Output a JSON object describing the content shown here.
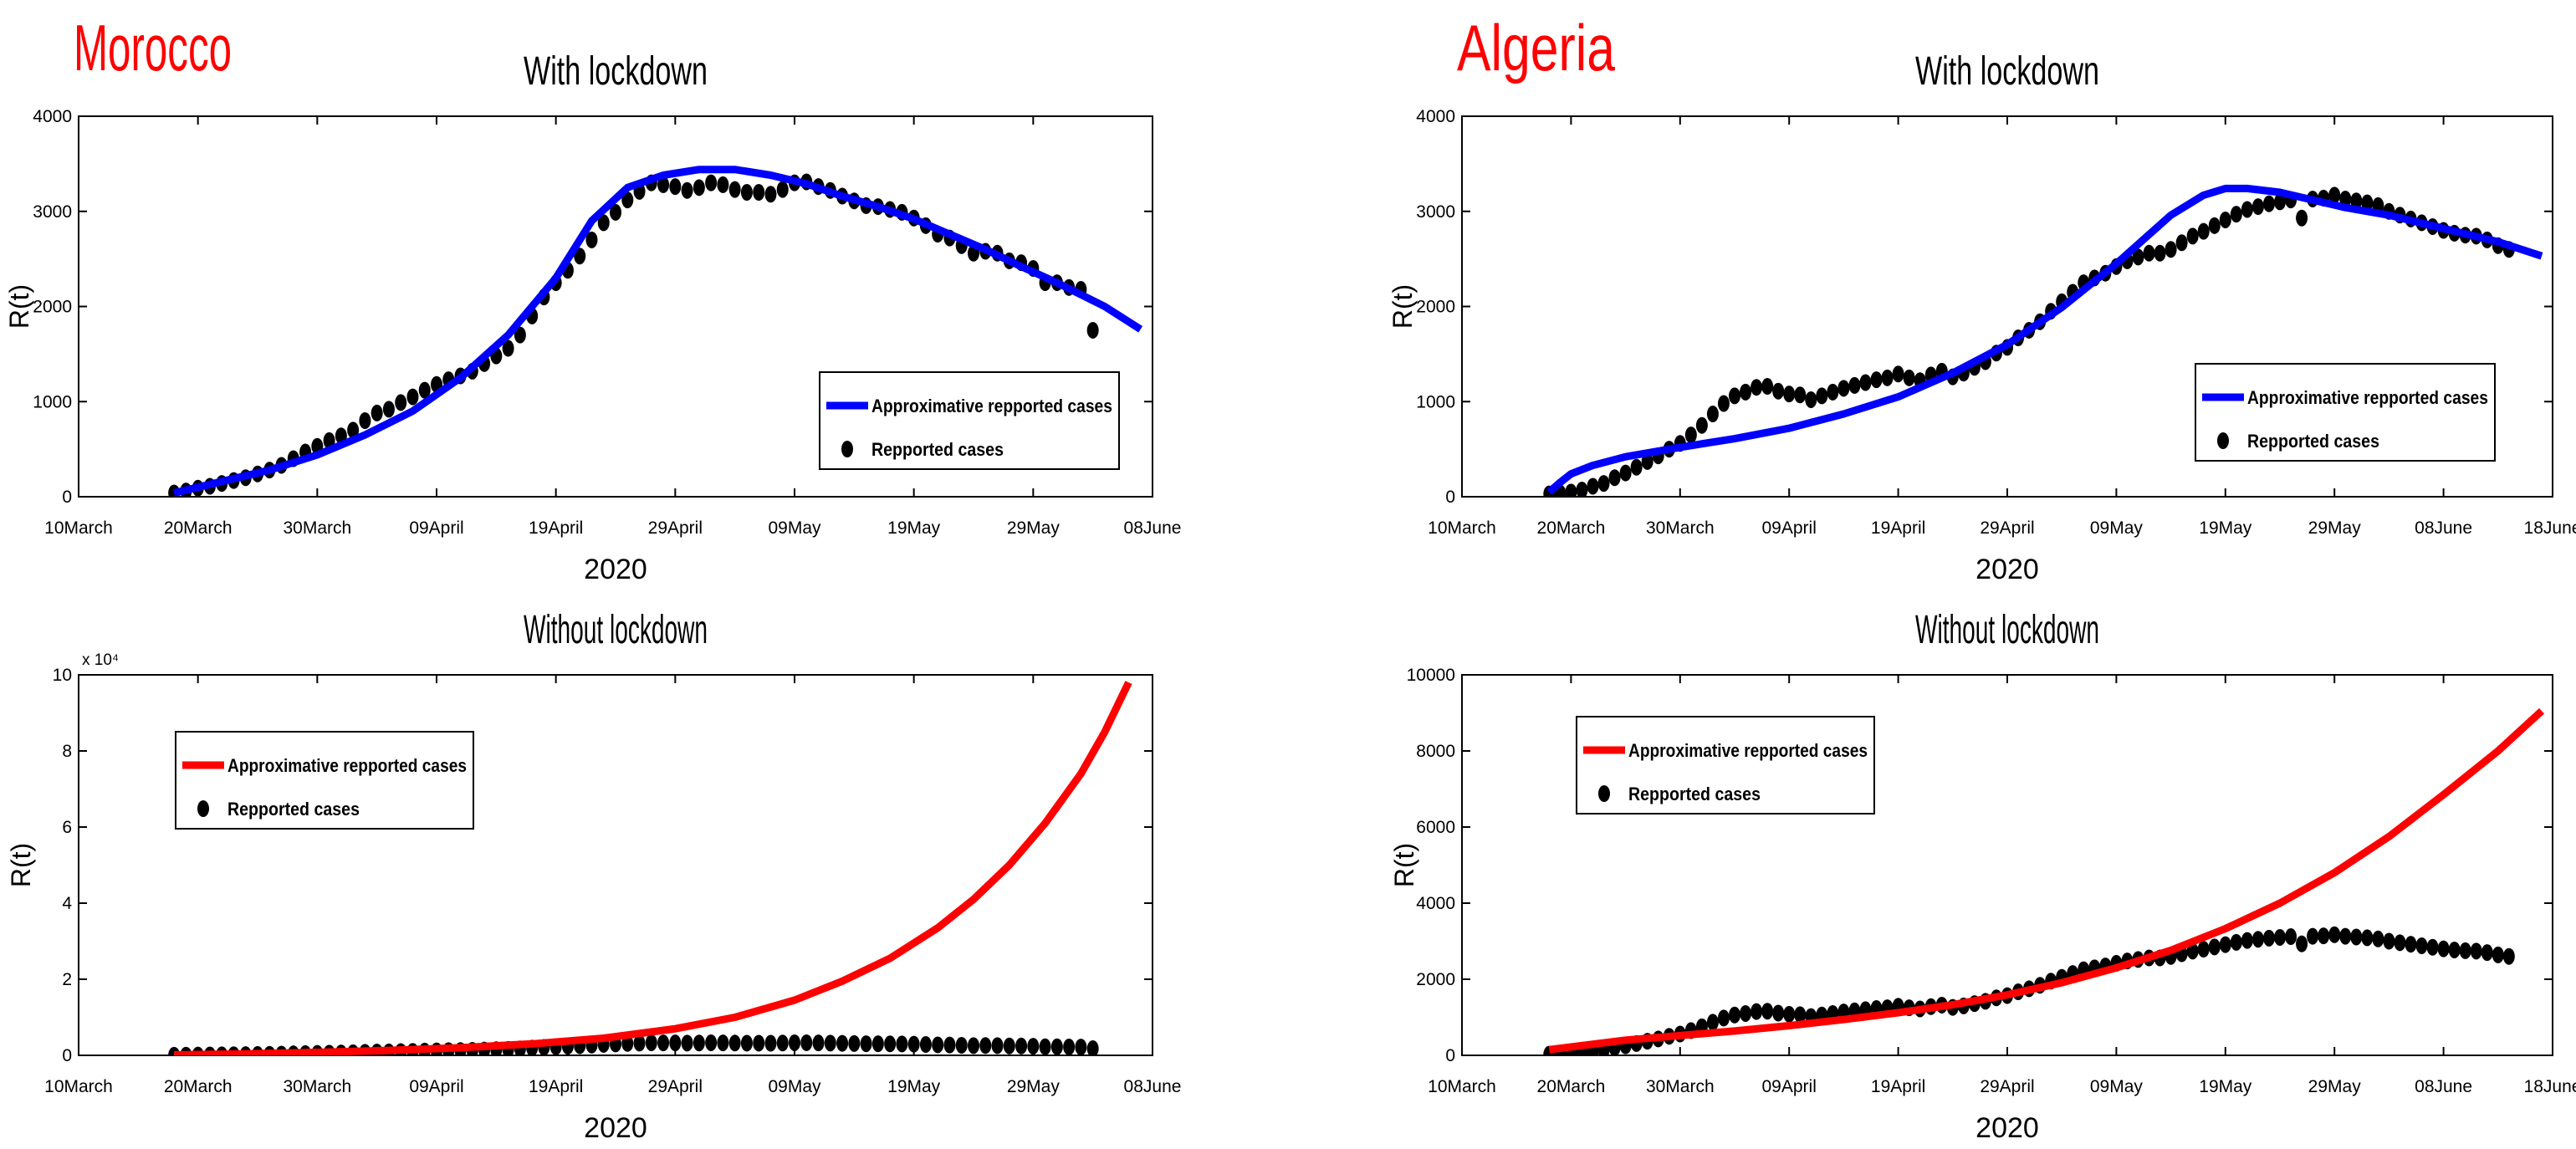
{
  "figure": {
    "xlabel": "2020",
    "ylabel": "R(t)",
    "legend_fit": "Approximative repported cases",
    "legend_obs": "Repported cases"
  },
  "colors": {
    "fit_with": "#0000ff",
    "fit_without": "#ff0000",
    "observed": "#000000",
    "country_label": "#ff0000",
    "axes": "#000000",
    "background": "#ffffff"
  },
  "chart_data": [
    {
      "id": "morocco-with",
      "type": "line",
      "country": "Morocco",
      "title": "With lockdown",
      "xlabel": "2020",
      "ylabel": "R(t)",
      "xlim": [
        0,
        90
      ],
      "ylim": [
        0,
        4000
      ],
      "y_exponent_label": "",
      "xticks": [
        0,
        10,
        20,
        30,
        40,
        50,
        60,
        70,
        80,
        90
      ],
      "xtick_labels": [
        "10March",
        "20March",
        "30March",
        "09April",
        "19April",
        "29April",
        "09May",
        "19May",
        "29May",
        "08June"
      ],
      "yticks": [
        0,
        1000,
        2000,
        3000,
        4000
      ],
      "ytick_labels": [
        "0",
        "1000",
        "2000",
        "3000",
        "4000"
      ],
      "legend_position": "center-right",
      "series": [
        {
          "name": "Approximative repported cases",
          "kind": "line",
          "color": "#0000ff",
          "x": [
            8,
            12,
            16,
            20,
            24,
            28,
            32,
            36,
            40,
            43,
            46,
            49,
            52,
            55,
            58,
            61,
            64,
            67,
            70,
            73,
            76,
            79,
            82,
            86,
            89
          ],
          "y": [
            40,
            160,
            280,
            440,
            650,
            900,
            1250,
            1700,
            2300,
            2900,
            3250,
            3380,
            3440,
            3440,
            3380,
            3290,
            3160,
            3050,
            2920,
            2760,
            2600,
            2420,
            2250,
            2000,
            1760
          ]
        },
        {
          "name": "Repported cases",
          "kind": "scatter",
          "color": "#000000",
          "x": [
            8,
            9,
            10,
            11,
            12,
            13,
            14,
            15,
            16,
            17,
            18,
            19,
            20,
            21,
            22,
            23,
            24,
            25,
            26,
            27,
            28,
            29,
            30,
            31,
            32,
            33,
            34,
            35,
            36,
            37,
            38,
            39,
            40,
            41,
            42,
            43,
            44,
            45,
            46,
            47,
            48,
            49,
            50,
            51,
            52,
            53,
            54,
            55,
            56,
            57,
            58,
            59,
            60,
            61,
            62,
            63,
            64,
            65,
            66,
            67,
            68,
            69,
            70,
            71,
            72,
            73,
            74,
            75,
            76,
            77,
            78,
            79,
            80,
            81,
            82,
            83,
            84,
            85
          ],
          "y": [
            40,
            60,
            90,
            110,
            140,
            170,
            200,
            240,
            280,
            330,
            400,
            470,
            530,
            590,
            640,
            700,
            800,
            880,
            920,
            990,
            1050,
            1120,
            1180,
            1230,
            1270,
            1320,
            1400,
            1480,
            1560,
            1700,
            1900,
            2100,
            2250,
            2380,
            2530,
            2700,
            2880,
            2990,
            3120,
            3210,
            3300,
            3280,
            3260,
            3220,
            3250,
            3300,
            3280,
            3230,
            3200,
            3200,
            3180,
            3230,
            3300,
            3310,
            3260,
            3220,
            3160,
            3110,
            3060,
            3050,
            3020,
            2990,
            2930,
            2850,
            2760,
            2720,
            2640,
            2560,
            2580,
            2560,
            2480,
            2460,
            2400,
            2250,
            2250,
            2200,
            2180,
            1750
          ]
        }
      ]
    },
    {
      "id": "algeria-with",
      "type": "line",
      "country": "Algeria",
      "title": "With lockdown",
      "xlabel": "2020",
      "ylabel": "R(t)",
      "xlim": [
        0,
        100
      ],
      "ylim": [
        0,
        4000
      ],
      "y_exponent_label": "",
      "xticks": [
        0,
        10,
        20,
        30,
        40,
        50,
        60,
        70,
        80,
        90,
        100
      ],
      "xtick_labels": [
        "10March",
        "20March",
        "30March",
        "09April",
        "19April",
        "29April",
        "09May",
        "19May",
        "29May",
        "08June",
        "18June"
      ],
      "yticks": [
        0,
        1000,
        2000,
        3000,
        4000
      ],
      "ytick_labels": [
        "0",
        "1000",
        "2000",
        "3000",
        "4000"
      ],
      "legend_position": "center-right",
      "series": [
        {
          "name": "Approximative repported cases",
          "kind": "line",
          "color": "#0000ff",
          "x": [
            8,
            9,
            10,
            12,
            15,
            20,
            25,
            30,
            35,
            40,
            45,
            50,
            55,
            60,
            65,
            68,
            70,
            72,
            75,
            78,
            81,
            85,
            90,
            95,
            99
          ],
          "y": [
            50,
            150,
            240,
            330,
            420,
            520,
            610,
            720,
            870,
            1050,
            1300,
            1600,
            1990,
            2450,
            2960,
            3170,
            3240,
            3240,
            3200,
            3120,
            3040,
            2960,
            2820,
            2680,
            2530
          ]
        },
        {
          "name": "Repported cases",
          "kind": "scatter",
          "color": "#000000",
          "x": [
            8,
            9,
            10,
            11,
            12,
            13,
            14,
            15,
            16,
            17,
            18,
            19,
            20,
            21,
            22,
            23,
            24,
            25,
            26,
            27,
            28,
            29,
            30,
            31,
            32,
            33,
            34,
            35,
            36,
            37,
            38,
            39,
            40,
            41,
            42,
            43,
            44,
            45,
            46,
            47,
            48,
            49,
            50,
            51,
            52,
            53,
            54,
            55,
            56,
            57,
            58,
            59,
            60,
            61,
            62,
            63,
            64,
            65,
            66,
            67,
            68,
            69,
            70,
            71,
            72,
            73,
            74,
            75,
            76,
            77,
            78,
            79,
            80,
            81,
            82,
            83,
            84,
            85,
            86,
            87,
            88,
            89,
            90,
            91,
            92,
            93,
            94,
            95,
            96
          ],
          "y": [
            30,
            40,
            50,
            70,
            110,
            140,
            200,
            250,
            310,
            370,
            430,
            500,
            560,
            650,
            750,
            870,
            980,
            1060,
            1100,
            1150,
            1160,
            1110,
            1080,
            1070,
            1020,
            1060,
            1100,
            1140,
            1170,
            1200,
            1230,
            1250,
            1290,
            1250,
            1220,
            1280,
            1320,
            1260,
            1300,
            1360,
            1420,
            1510,
            1570,
            1670,
            1750,
            1840,
            1950,
            2050,
            2150,
            2250,
            2300,
            2350,
            2420,
            2480,
            2520,
            2560,
            2560,
            2600,
            2670,
            2740,
            2790,
            2850,
            2910,
            2970,
            3020,
            3050,
            3080,
            3100,
            3120,
            2930,
            3130,
            3140,
            3170,
            3130,
            3110,
            3090,
            3060,
            3000,
            2960,
            2920,
            2880,
            2840,
            2800,
            2770,
            2750,
            2740,
            2700,
            2640,
            2600
          ]
        }
      ]
    },
    {
      "id": "morocco-without",
      "type": "line",
      "country": "",
      "title": "Without lockdown",
      "xlabel": "2020",
      "ylabel": "R(t)",
      "xlim": [
        0,
        90
      ],
      "ylim": [
        0,
        100000
      ],
      "y_exponent_label": "x 10⁴",
      "xticks": [
        0,
        10,
        20,
        30,
        40,
        50,
        60,
        70,
        80,
        90
      ],
      "xtick_labels": [
        "10March",
        "20March",
        "30March",
        "09April",
        "19April",
        "29April",
        "09May",
        "19May",
        "29May",
        "08June"
      ],
      "yticks": [
        0,
        20000,
        40000,
        60000,
        80000,
        100000
      ],
      "ytick_labels": [
        "0",
        "2",
        "4",
        "6",
        "8",
        "10"
      ],
      "legend_position": "top-left",
      "series": [
        {
          "name": "Approximative repported cases",
          "kind": "line",
          "color": "#ff0000",
          "x": [
            8,
            14,
            20,
            26,
            32,
            38,
            44,
            50,
            55,
            60,
            64,
            68,
            72,
            75,
            78,
            81,
            84,
            86,
            88
          ],
          "y": [
            100,
            400,
            800,
            1300,
            2000,
            3000,
            4500,
            7000,
            10000,
            14500,
            19500,
            25500,
            33500,
            41000,
            50000,
            61000,
            74000,
            85000,
            98000
          ]
        },
        {
          "name": "Repported cases",
          "kind": "scatter",
          "color": "#000000",
          "x": [
            8,
            9,
            10,
            11,
            12,
            13,
            14,
            15,
            16,
            17,
            18,
            19,
            20,
            21,
            22,
            23,
            24,
            25,
            26,
            27,
            28,
            29,
            30,
            31,
            32,
            33,
            34,
            35,
            36,
            37,
            38,
            39,
            40,
            41,
            42,
            43,
            44,
            45,
            46,
            47,
            48,
            49,
            50,
            51,
            52,
            53,
            54,
            55,
            56,
            57,
            58,
            59,
            60,
            61,
            62,
            63,
            64,
            65,
            66,
            67,
            68,
            69,
            70,
            71,
            72,
            73,
            74,
            75,
            76,
            77,
            78,
            79,
            80,
            81,
            82,
            83,
            84,
            85
          ],
          "y": [
            40,
            60,
            90,
            110,
            140,
            170,
            200,
            240,
            280,
            330,
            400,
            470,
            530,
            590,
            640,
            700,
            800,
            880,
            920,
            990,
            1050,
            1120,
            1180,
            1230,
            1270,
            1320,
            1400,
            1480,
            1560,
            1700,
            1900,
            2100,
            2250,
            2380,
            2530,
            2700,
            2880,
            2990,
            3120,
            3210,
            3300,
            3280,
            3260,
            3220,
            3250,
            3300,
            3280,
            3230,
            3200,
            3200,
            3180,
            3230,
            3300,
            3310,
            3260,
            3220,
            3160,
            3110,
            3060,
            3050,
            3020,
            2990,
            2930,
            2850,
            2760,
            2720,
            2640,
            2560,
            2580,
            2560,
            2480,
            2460,
            2400,
            2250,
            2250,
            2200,
            2180,
            1750
          ]
        }
      ]
    },
    {
      "id": "algeria-without",
      "type": "line",
      "country": "",
      "title": "Without lockdown",
      "xlabel": "2020",
      "ylabel": "R(t)",
      "xlim": [
        0,
        100
      ],
      "ylim": [
        0,
        10000
      ],
      "y_exponent_label": "",
      "xticks": [
        0,
        10,
        20,
        30,
        40,
        50,
        60,
        70,
        80,
        90,
        100
      ],
      "xtick_labels": [
        "10March",
        "20March",
        "30March",
        "09April",
        "19April",
        "29April",
        "09May",
        "19May",
        "29May",
        "08June",
        "18June"
      ],
      "yticks": [
        0,
        2000,
        4000,
        6000,
        8000,
        10000
      ],
      "ytick_labels": [
        "0",
        "2000",
        "4000",
        "6000",
        "8000",
        "10000"
      ],
      "legend_position": "top-left",
      "series": [
        {
          "name": "Approximative repported cases",
          "kind": "line",
          "color": "#ff0000",
          "x": [
            8,
            15,
            20,
            25,
            30,
            35,
            40,
            45,
            50,
            55,
            60,
            65,
            70,
            75,
            80,
            85,
            90,
            95,
            99
          ],
          "y": [
            150,
            400,
            520,
            640,
            780,
            940,
            1120,
            1330,
            1590,
            1910,
            2300,
            2760,
            3330,
            4000,
            4800,
            5750,
            6850,
            8000,
            9050
          ]
        },
        {
          "name": "Repported cases",
          "kind": "scatter",
          "color": "#000000",
          "x": [
            8,
            9,
            10,
            11,
            12,
            13,
            14,
            15,
            16,
            17,
            18,
            19,
            20,
            21,
            22,
            23,
            24,
            25,
            26,
            27,
            28,
            29,
            30,
            31,
            32,
            33,
            34,
            35,
            36,
            37,
            38,
            39,
            40,
            41,
            42,
            43,
            44,
            45,
            46,
            47,
            48,
            49,
            50,
            51,
            52,
            53,
            54,
            55,
            56,
            57,
            58,
            59,
            60,
            61,
            62,
            63,
            64,
            65,
            66,
            67,
            68,
            69,
            70,
            71,
            72,
            73,
            74,
            75,
            76,
            77,
            78,
            79,
            80,
            81,
            82,
            83,
            84,
            85,
            86,
            87,
            88,
            89,
            90,
            91,
            92,
            93,
            94,
            95,
            96
          ],
          "y": [
            30,
            40,
            50,
            70,
            110,
            140,
            200,
            250,
            310,
            370,
            430,
            500,
            560,
            650,
            750,
            870,
            980,
            1060,
            1100,
            1150,
            1160,
            1110,
            1080,
            1070,
            1020,
            1060,
            1100,
            1140,
            1170,
            1200,
            1230,
            1250,
            1290,
            1250,
            1220,
            1280,
            1320,
            1260,
            1300,
            1360,
            1420,
            1510,
            1570,
            1670,
            1750,
            1840,
            1950,
            2050,
            2150,
            2250,
            2300,
            2350,
            2420,
            2480,
            2520,
            2560,
            2560,
            2600,
            2670,
            2740,
            2790,
            2850,
            2910,
            2970,
            3020,
            3050,
            3080,
            3100,
            3120,
            2930,
            3130,
            3140,
            3170,
            3130,
            3110,
            3090,
            3060,
            3000,
            2960,
            2920,
            2880,
            2840,
            2800,
            2770,
            2750,
            2740,
            2700,
            2640,
            2600
          ]
        }
      ]
    }
  ]
}
